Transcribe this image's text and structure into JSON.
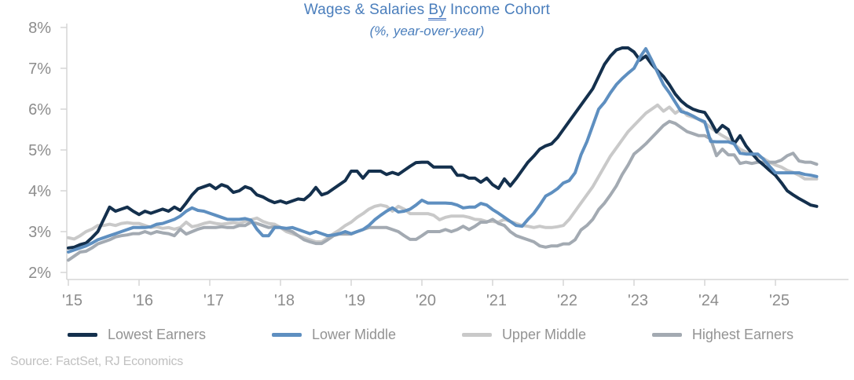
{
  "title": {
    "before": "Wages & Salaries",
    "underlined": "By",
    "after": "Income Cohort"
  },
  "subtitle": "(%, year-over-year)",
  "source": "Source: FactSet, RJ Economics",
  "colors": {
    "title_blue": "#4a7ebc",
    "axis_line": "#d6d6d6",
    "axis_text": "#8c8c8c",
    "legend_text": "#939393",
    "source_text": "#c0c0c0"
  },
  "chart_data": {
    "type": "line",
    "title": "Wages & Salaries By Income Cohort",
    "subtitle": "(%, year-over-year)",
    "unit": "percent, year-over-year",
    "x_start": "2015-01",
    "x_end": "2025-08",
    "frequency": "monthly",
    "x_tick_labels": [
      "'15",
      "'16",
      "'17",
      "'18",
      "'19",
      "'20",
      "'21",
      "'22",
      "'23",
      "'24",
      "'25"
    ],
    "y_tick_labels": [
      "2%",
      "3%",
      "4%",
      "5%",
      "6%",
      "7%",
      "8%"
    ],
    "ylim": [
      2,
      8
    ],
    "grid": false,
    "legend_position": "bottom",
    "draw_order": [
      2,
      3,
      0,
      1
    ],
    "series": [
      {
        "name": "Lowest Earners",
        "color": "#14304d",
        "values": [
          2.6,
          2.62,
          2.68,
          2.72,
          2.85,
          3.0,
          3.3,
          3.6,
          3.5,
          3.55,
          3.6,
          3.5,
          3.42,
          3.5,
          3.45,
          3.5,
          3.55,
          3.5,
          3.6,
          3.52,
          3.7,
          3.9,
          4.05,
          4.1,
          4.15,
          4.05,
          4.15,
          4.1,
          3.96,
          4.0,
          4.1,
          4.05,
          3.9,
          3.85,
          3.77,
          3.71,
          3.75,
          3.7,
          3.75,
          3.8,
          3.78,
          3.9,
          4.08,
          3.9,
          3.95,
          4.05,
          4.15,
          4.25,
          4.48,
          4.48,
          4.31,
          4.48,
          4.48,
          4.48,
          4.4,
          4.45,
          4.4,
          4.5,
          4.6,
          4.69,
          4.7,
          4.7,
          4.58,
          4.58,
          4.58,
          4.58,
          4.38,
          4.38,
          4.31,
          4.31,
          4.21,
          4.31,
          4.15,
          4.06,
          4.29,
          4.12,
          4.3,
          4.5,
          4.7,
          4.85,
          5.02,
          5.1,
          5.15,
          5.3,
          5.5,
          5.7,
          5.9,
          6.1,
          6.3,
          6.5,
          6.8,
          7.1,
          7.3,
          7.45,
          7.5,
          7.5,
          7.4,
          7.2,
          7.3,
          7.1,
          6.94,
          6.8,
          6.6,
          6.37,
          6.2,
          6.08,
          6.0,
          5.95,
          5.92,
          5.7,
          5.44,
          5.6,
          5.5,
          5.15,
          5.35,
          5.1,
          4.92,
          4.75,
          4.63,
          4.5,
          4.38,
          4.2,
          4.0,
          3.9,
          3.81,
          3.73,
          3.65,
          3.62
        ]
      },
      {
        "name": "Lower Middle",
        "color": "#5e8fc0",
        "values": [
          2.5,
          2.55,
          2.6,
          2.65,
          2.72,
          2.8,
          2.85,
          2.9,
          2.95,
          3.0,
          3.05,
          3.1,
          3.1,
          3.1,
          3.12,
          3.18,
          3.2,
          3.25,
          3.3,
          3.38,
          3.5,
          3.58,
          3.52,
          3.5,
          3.45,
          3.4,
          3.35,
          3.3,
          3.3,
          3.3,
          3.32,
          3.28,
          3.06,
          2.9,
          2.9,
          3.1,
          3.1,
          3.08,
          3.1,
          3.05,
          3.0,
          2.95,
          3.0,
          2.95,
          2.9,
          2.92,
          2.95,
          3.0,
          2.95,
          3.0,
          3.05,
          3.15,
          3.29,
          3.4,
          3.5,
          3.58,
          3.48,
          3.5,
          3.55,
          3.65,
          3.77,
          3.7,
          3.7,
          3.7,
          3.7,
          3.69,
          3.65,
          3.58,
          3.6,
          3.6,
          3.69,
          3.65,
          3.54,
          3.45,
          3.35,
          3.25,
          3.15,
          3.13,
          3.3,
          3.45,
          3.65,
          3.87,
          3.95,
          4.05,
          4.19,
          4.25,
          4.44,
          4.88,
          5.2,
          5.6,
          6.0,
          6.17,
          6.4,
          6.6,
          6.75,
          6.88,
          7.0,
          7.27,
          7.48,
          7.2,
          6.9,
          6.6,
          6.4,
          6.17,
          5.94,
          5.9,
          5.83,
          5.75,
          5.69,
          5.21,
          5.2,
          5.2,
          5.2,
          5.15,
          4.92,
          4.9,
          4.9,
          4.9,
          4.77,
          4.6,
          4.44,
          4.44,
          4.44,
          4.44,
          4.44,
          4.4,
          4.38,
          4.35
        ]
      },
      {
        "name": "Upper Middle",
        "color": "#c9c9c9",
        "values": [
          2.85,
          2.82,
          2.9,
          3.0,
          3.06,
          3.15,
          3.15,
          3.18,
          3.15,
          3.2,
          3.22,
          3.2,
          3.2,
          3.15,
          3.1,
          3.12,
          3.08,
          3.1,
          3.06,
          3.1,
          3.23,
          3.12,
          3.15,
          3.2,
          3.23,
          3.2,
          3.18,
          3.2,
          3.22,
          3.2,
          3.25,
          3.29,
          3.33,
          3.25,
          3.2,
          3.18,
          3.1,
          3.0,
          2.95,
          2.9,
          2.85,
          2.8,
          2.75,
          2.75,
          2.85,
          2.95,
          3.04,
          3.15,
          3.23,
          3.35,
          3.44,
          3.55,
          3.62,
          3.65,
          3.62,
          3.5,
          3.62,
          3.55,
          3.44,
          3.44,
          3.44,
          3.44,
          3.4,
          3.29,
          3.35,
          3.38,
          3.38,
          3.38,
          3.35,
          3.3,
          3.29,
          3.25,
          3.25,
          3.23,
          3.3,
          3.25,
          3.2,
          3.15,
          3.13,
          3.1,
          3.13,
          3.1,
          3.1,
          3.12,
          3.15,
          3.3,
          3.5,
          3.7,
          3.9,
          4.1,
          4.35,
          4.6,
          4.85,
          5.05,
          5.25,
          5.45,
          5.6,
          5.75,
          5.9,
          6.0,
          6.1,
          5.95,
          6.05,
          5.9,
          6.0,
          5.85,
          5.8,
          5.75,
          5.66,
          5.55,
          5.44,
          5.35,
          5.27,
          5.15,
          5.02,
          4.95,
          4.88,
          4.85,
          4.79,
          4.7,
          4.63,
          4.58,
          4.5,
          4.45,
          4.38,
          4.29,
          4.29,
          4.29
        ]
      },
      {
        "name": "Highest Earners",
        "color": "#a3aab2",
        "values": [
          2.3,
          2.4,
          2.5,
          2.52,
          2.6,
          2.7,
          2.75,
          2.8,
          2.87,
          2.9,
          2.92,
          2.95,
          2.95,
          3.0,
          2.95,
          3.0,
          2.97,
          2.95,
          2.9,
          3.06,
          2.94,
          3.0,
          3.06,
          3.1,
          3.1,
          3.1,
          3.12,
          3.1,
          3.1,
          3.15,
          3.15,
          3.23,
          3.2,
          3.15,
          3.1,
          3.12,
          3.1,
          3.05,
          3.0,
          2.9,
          2.8,
          2.75,
          2.71,
          2.71,
          2.8,
          2.9,
          2.94,
          2.94,
          2.94,
          3.0,
          3.05,
          3.1,
          3.1,
          3.1,
          3.1,
          3.05,
          3.0,
          2.9,
          2.81,
          2.81,
          2.9,
          3.0,
          3.0,
          3.0,
          3.05,
          3.0,
          3.05,
          3.13,
          3.05,
          3.13,
          3.23,
          3.23,
          3.3,
          3.2,
          3.15,
          3.0,
          2.9,
          2.85,
          2.8,
          2.75,
          2.65,
          2.62,
          2.65,
          2.65,
          2.7,
          2.7,
          2.8,
          3.04,
          3.15,
          3.3,
          3.54,
          3.7,
          3.9,
          4.12,
          4.4,
          4.63,
          4.9,
          5.02,
          5.15,
          5.3,
          5.45,
          5.6,
          5.7,
          5.65,
          5.55,
          5.45,
          5.4,
          5.35,
          5.35,
          5.27,
          4.86,
          5.02,
          4.88,
          4.88,
          4.67,
          4.7,
          4.67,
          4.7,
          4.7,
          4.7,
          4.7,
          4.75,
          4.86,
          4.92,
          4.73,
          4.7,
          4.7,
          4.65
        ]
      }
    ]
  }
}
